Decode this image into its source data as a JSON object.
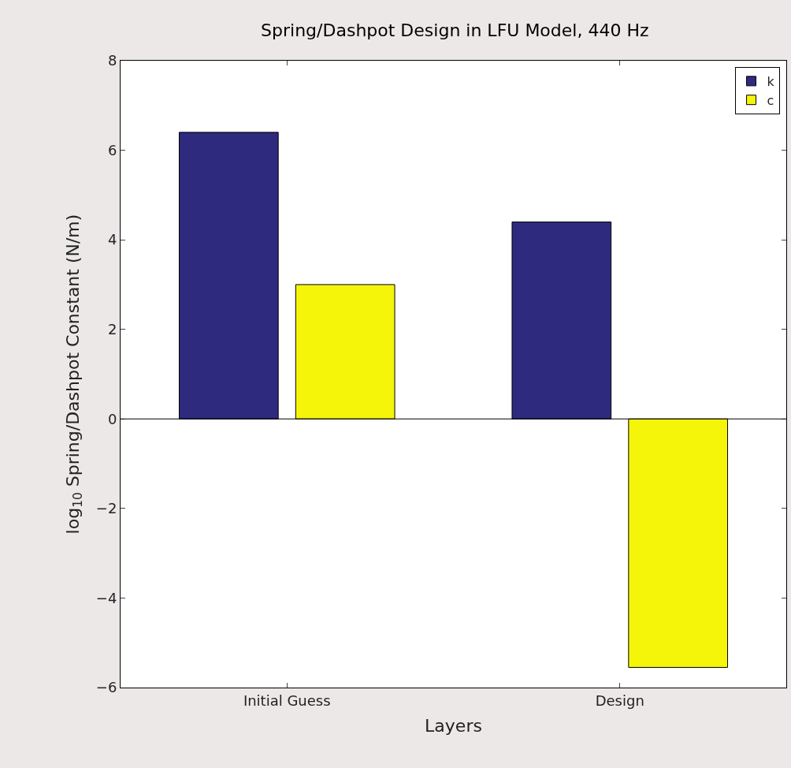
{
  "chart_data": {
    "type": "bar",
    "title": "Spring/Dashpot Design in LFU Model, 440 Hz",
    "xlabel": "Layers",
    "ylabel": "log$_{10}$ Spring/Dashpot Constant (N/m)",
    "categories": [
      "Initial Guess",
      "Design"
    ],
    "series": [
      {
        "name": "k",
        "color": "#2e2a7e",
        "values": [
          6.4,
          4.4
        ]
      },
      {
        "name": "c",
        "color": "#f5f50a",
        "values": [
          3.0,
          -5.55
        ]
      }
    ],
    "ylim": [
      -6,
      8
    ],
    "yticks": [
      -6,
      -4,
      -2,
      0,
      2,
      4,
      6,
      8
    ],
    "ref_lines": [
      {
        "axis": "y",
        "value": 0,
        "color": "#000000"
      }
    ],
    "legend": "top right"
  }
}
